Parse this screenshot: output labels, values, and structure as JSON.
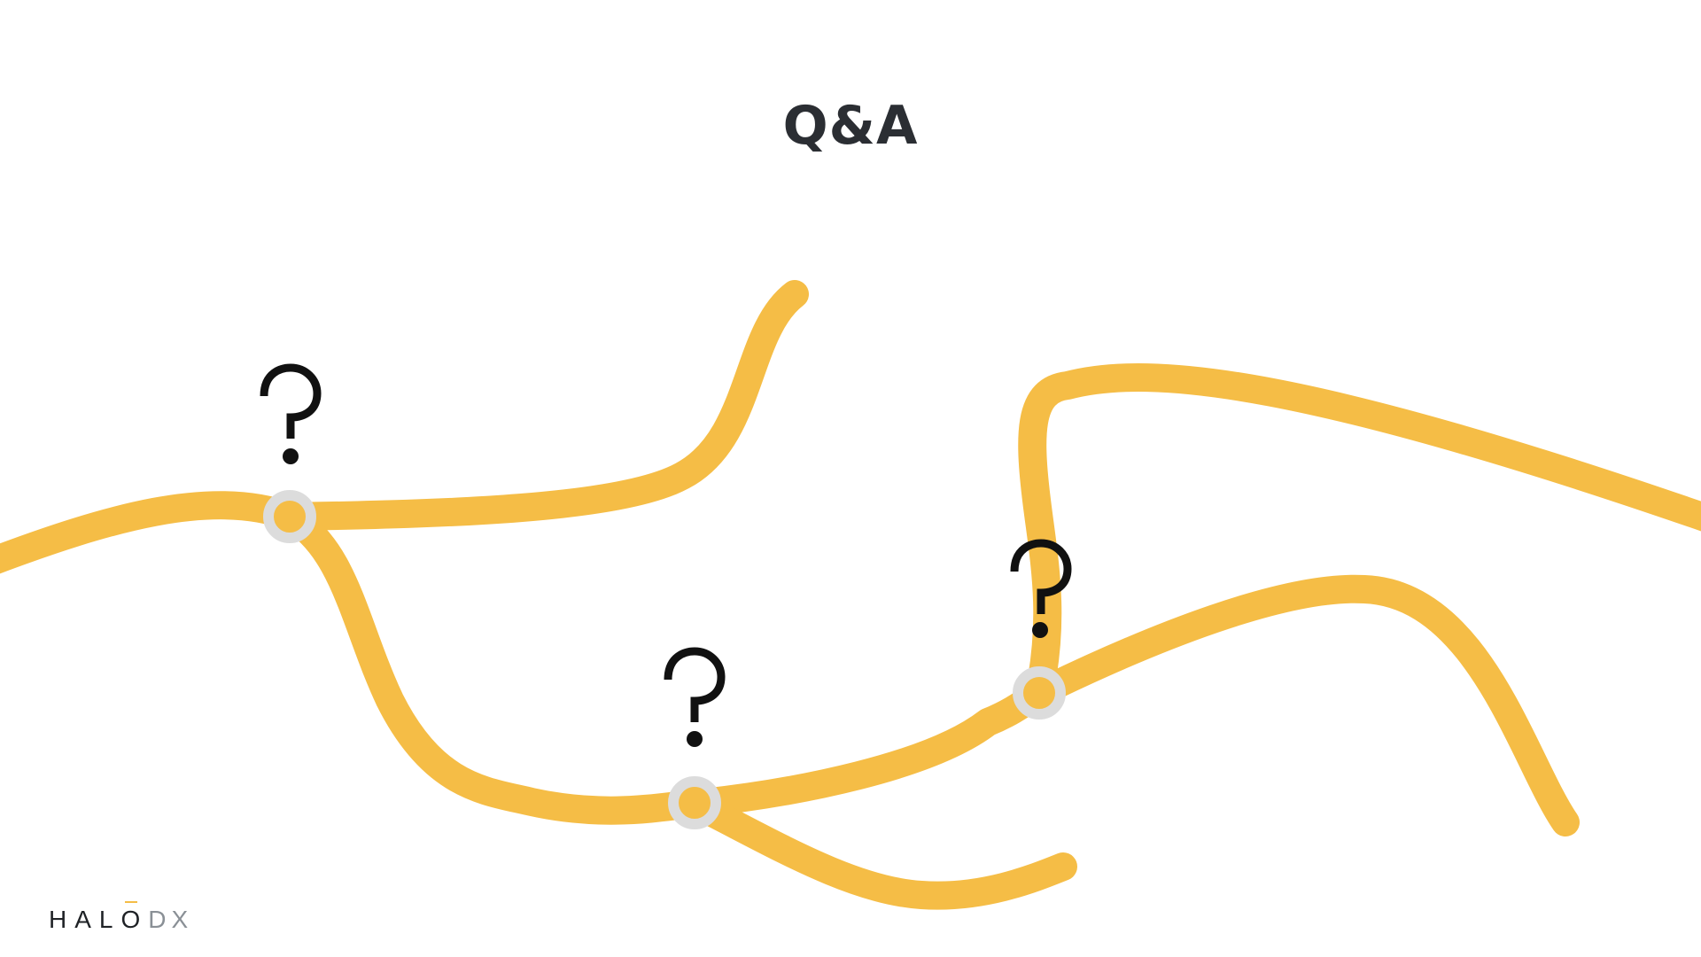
{
  "slide": {
    "title": "Q&A"
  },
  "logo": {
    "primary": "HALO",
    "secondary": "DX"
  },
  "colors": {
    "path": "#f5bd46",
    "node_ring": "#dcdcdc",
    "question_mark": "#111111",
    "title": "#2b2e33",
    "logo_primary": "#1f2226",
    "logo_secondary": "#8a9096"
  },
  "icons": {
    "question_marks": [
      "question-mark-icon",
      "question-mark-icon",
      "question-mark-icon"
    ],
    "nodes": [
      "node-marker-icon",
      "node-marker-icon",
      "node-marker-icon"
    ]
  }
}
